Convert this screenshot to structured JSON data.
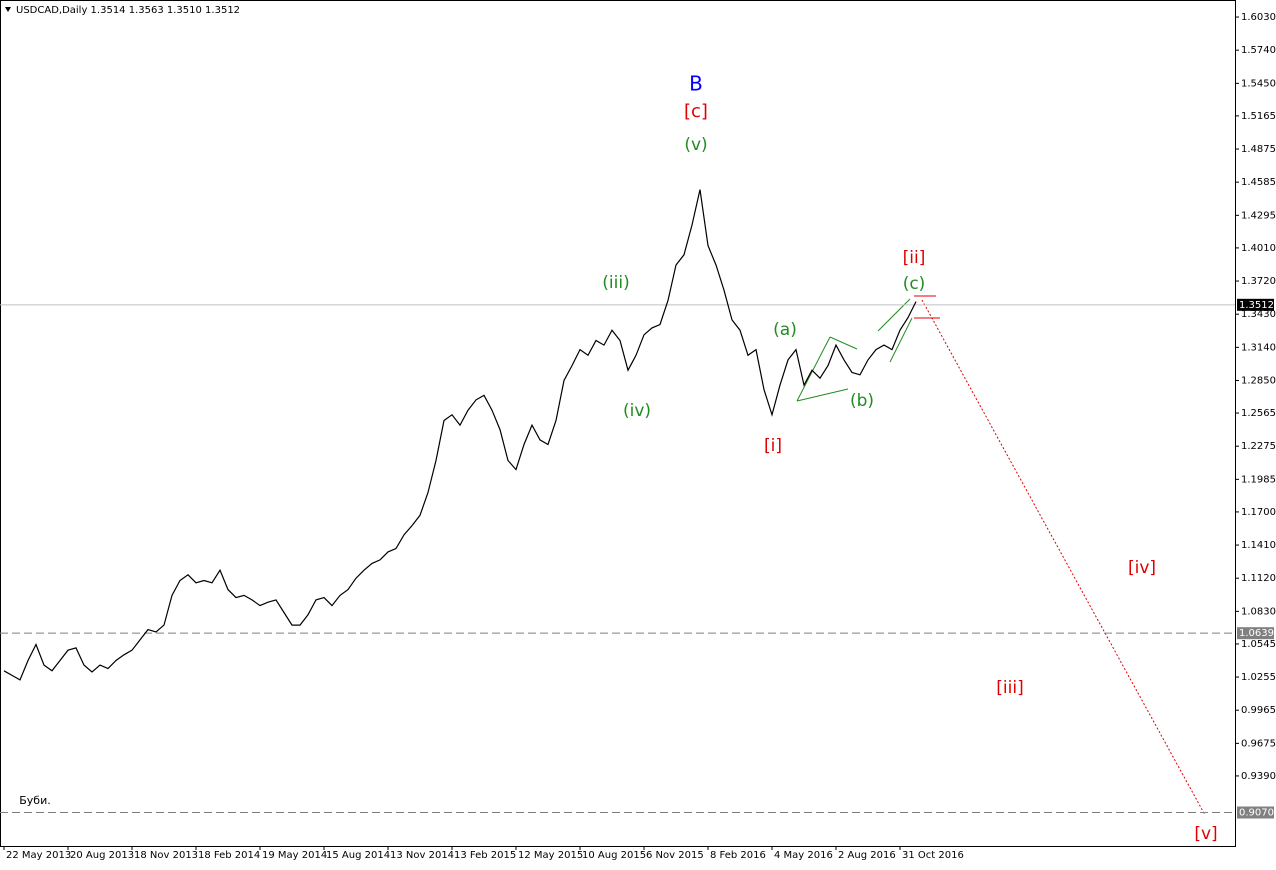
{
  "chart_data": {
    "type": "line",
    "title": "USDCAD,Daily  1.3514 1.3563 1.3510 1.3512",
    "color": "#000000",
    "values": [
      1.031,
      1.027,
      1.023,
      1.04,
      1.054,
      1.036,
      1.031,
      1.04,
      1.049,
      1.051,
      1.036,
      1.03,
      1.036,
      1.033,
      1.04,
      1.045,
      1.049,
      1.058,
      1.067,
      1.065,
      1.071,
      1.097,
      1.11,
      1.115,
      1.108,
      1.11,
      1.108,
      1.119,
      1.102,
      1.095,
      1.097,
      1.093,
      1.088,
      1.091,
      1.093,
      1.082,
      1.071,
      1.071,
      1.08,
      1.093,
      1.095,
      1.088,
      1.097,
      1.102,
      1.112,
      1.119,
      1.125,
      1.128,
      1.135,
      1.138,
      1.15,
      1.158,
      1.167,
      1.187,
      1.215,
      1.25,
      1.255,
      1.246,
      1.259,
      1.268,
      1.272,
      1.259,
      1.242,
      1.215,
      1.207,
      1.229,
      1.246,
      1.233,
      1.229,
      1.25,
      1.285,
      1.298,
      1.312,
      1.307,
      1.32,
      1.316,
      1.329,
      1.32,
      1.294,
      1.307,
      1.325,
      1.331,
      1.334,
      1.355,
      1.386,
      1.395,
      1.421,
      1.452,
      1.403,
      1.386,
      1.364,
      1.338,
      1.329,
      1.307,
      1.312,
      1.277,
      1.255,
      1.281,
      1.303,
      1.312,
      1.281,
      1.294,
      1.287,
      1.298,
      1.316,
      1.303,
      1.292,
      1.29,
      1.303,
      1.312,
      1.316,
      1.312,
      1.329,
      1.34,
      1.354
    ],
    "xlim": [
      0,
      154.375
    ],
    "xticks": [
      {
        "value": 0.5,
        "label": "22 May 2013"
      },
      {
        "value": 8.5,
        "label": "20 Aug 2013"
      },
      {
        "value": 16.5,
        "label": "18 Nov 2013"
      },
      {
        "value": 24.5,
        "label": "18 Feb 2014"
      },
      {
        "value": 32.5,
        "label": "19 May 2014"
      },
      {
        "value": 40.5,
        "label": "15 Aug 2014"
      },
      {
        "value": 48.5,
        "label": "13 Nov 2014"
      },
      {
        "value": 56.5,
        "label": "13 Feb 2015"
      },
      {
        "value": 64.5,
        "label": "12 May 2015"
      },
      {
        "value": 72.5,
        "label": "10 Aug 2015"
      },
      {
        "value": 80.5,
        "label": "6 Nov 2015"
      },
      {
        "value": 88.5,
        "label": "8 Feb 2016"
      },
      {
        "value": 96.5,
        "label": "4 May 2016"
      },
      {
        "value": 104.5,
        "label": "2 Aug 2016"
      },
      {
        "value": 112.5,
        "label": "31 Oct 2016"
      }
    ],
    "ylim": [
      0.8777,
      1.6179
    ],
    "yticks": [
      {
        "value": 1.603,
        "label": "1.6030"
      },
      {
        "value": 1.574,
        "label": "1.5740"
      },
      {
        "value": 1.545,
        "label": "1.5450"
      },
      {
        "value": 1.5165,
        "label": "1.5165"
      },
      {
        "value": 1.4875,
        "label": "1.4875"
      },
      {
        "value": 1.4585,
        "label": "1.4585"
      },
      {
        "value": 1.4295,
        "label": "1.4295"
      },
      {
        "value": 1.401,
        "label": "1.4010"
      },
      {
        "value": 1.372,
        "label": "1.3720"
      },
      {
        "value": 1.343,
        "label": "1.3430"
      },
      {
        "value": 1.314,
        "label": "1.3140"
      },
      {
        "value": 1.285,
        "label": "1.2850"
      },
      {
        "value": 1.2565,
        "label": "1.2565"
      },
      {
        "value": 1.2275,
        "label": "1.2275"
      },
      {
        "value": 1.1985,
        "label": "1.1985"
      },
      {
        "value": 1.17,
        "label": "1.1700"
      },
      {
        "value": 1.141,
        "label": "1.1410"
      },
      {
        "value": 1.112,
        "label": "1.1120"
      },
      {
        "value": 1.083,
        "label": "1.0830"
      },
      {
        "value": 1.0545,
        "label": "1.0545"
      },
      {
        "value": 1.0255,
        "label": "1.0255"
      },
      {
        "value": 0.9965,
        "label": "0.9965"
      },
      {
        "value": 0.9675,
        "label": "0.9675"
      },
      {
        "value": 0.939,
        "label": "0.9390"
      }
    ],
    "hlines": [
      {
        "value": 1.3512,
        "label": "1.3512",
        "style": "solid",
        "color": "#c0c0c0",
        "label_bg": "#000000"
      },
      {
        "value": 1.0639,
        "label": "1.0639",
        "style": "dashed",
        "color": "#808080",
        "label_bg": "#808080"
      },
      {
        "value": 0.907,
        "label": "0.9070",
        "style": "dashed",
        "color": "#808080",
        "label_bg": "#808080"
      }
    ],
    "grid": false,
    "annotations": [
      {
        "text": "B",
        "color": "#0000ff"
      },
      {
        "text": "[c]",
        "color": "#e00000"
      },
      {
        "text": "(v)",
        "color": "#228b22"
      },
      {
        "text": "(iii)",
        "color": "#228b22"
      },
      {
        "text": "(iv)",
        "color": "#228b22"
      },
      {
        "text": "[i]",
        "color": "#e00000"
      },
      {
        "text": "(a)",
        "color": "#228b22"
      },
      {
        "text": "(b)",
        "color": "#228b22"
      },
      {
        "text": "[ii]",
        "color": "#e00000"
      },
      {
        "text": "(c)",
        "color": "#228b22"
      },
      {
        "text": "[iv]",
        "color": "#e00000"
      },
      {
        "text": "[iii]",
        "color": "#e00000"
      },
      {
        "text": "[v]",
        "color": "#e00000"
      },
      {
        "text": "Буби.",
        "color": "#000000"
      }
    ]
  }
}
